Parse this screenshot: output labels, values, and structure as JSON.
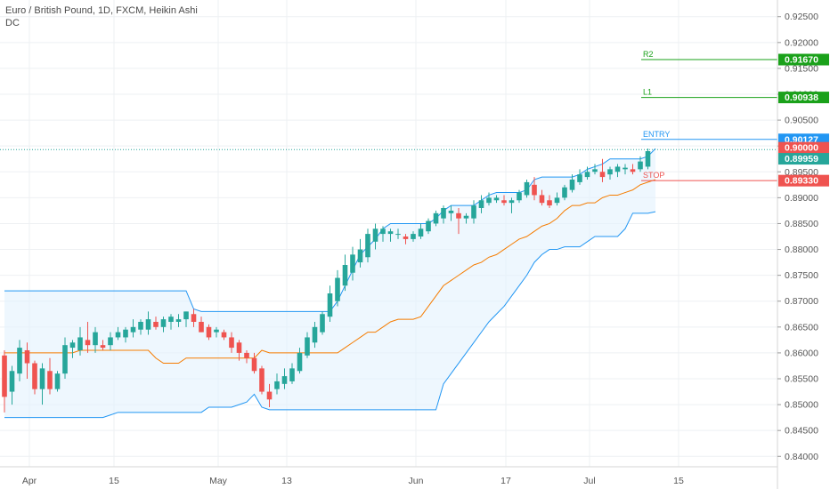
{
  "header": {
    "title": "Euro / British Pound, 1D, FXCM, Heikin Ashi",
    "indicator": "DC"
  },
  "colors": {
    "bull": "#26a69a",
    "bear": "#ef5350",
    "channel": "#2196f3",
    "channel_fill": "#e3f2fd",
    "mid": "#f57c00",
    "target": "#1aa11a",
    "entry": "#2196f3",
    "stop": "#ef5350",
    "last_price": "#26a69a",
    "grid": "#eef0f3",
    "axis_text": "#555555"
  },
  "chart_data": {
    "type": "candlestick",
    "y_ticks": [
      "0.92500",
      "0.92000",
      "0.91500",
      "0.91000",
      "0.90500",
      "0.90000",
      "0.89500",
      "0.89000",
      "0.88500",
      "0.88000",
      "0.87500",
      "0.87000",
      "0.86500",
      "0.86000",
      "0.85500",
      "0.85000",
      "0.84500",
      "0.84000"
    ],
    "x_ticks": [
      "Apr",
      "15",
      "May",
      "13",
      "Jun",
      "17",
      "Jul",
      "15"
    ],
    "ylim": [
      0.8385,
      0.9265
    ],
    "grid": true,
    "candles": [
      [
        0.8595,
        0.8605,
        0.8485,
        0.8515
      ],
      [
        0.8525,
        0.8575,
        0.85,
        0.8565
      ],
      [
        0.856,
        0.8625,
        0.8545,
        0.861
      ],
      [
        0.8605,
        0.862,
        0.855,
        0.858
      ],
      [
        0.858,
        0.8585,
        0.852,
        0.853
      ],
      [
        0.853,
        0.858,
        0.85,
        0.857
      ],
      [
        0.8565,
        0.859,
        0.852,
        0.853
      ],
      [
        0.853,
        0.8565,
        0.8525,
        0.856
      ],
      [
        0.856,
        0.863,
        0.855,
        0.8615
      ],
      [
        0.861,
        0.8625,
        0.859,
        0.862
      ],
      [
        0.8605,
        0.865,
        0.8595,
        0.863
      ],
      [
        0.8625,
        0.866,
        0.86,
        0.8615
      ],
      [
        0.8615,
        0.865,
        0.86,
        0.864
      ],
      [
        0.8615,
        0.8625,
        0.8605,
        0.861
      ],
      [
        0.8615,
        0.864,
        0.8605,
        0.863
      ],
      [
        0.863,
        0.865,
        0.8625,
        0.864
      ],
      [
        0.863,
        0.865,
        0.862,
        0.8645
      ],
      [
        0.864,
        0.8665,
        0.863,
        0.865
      ],
      [
        0.8645,
        0.8665,
        0.8635,
        0.866
      ],
      [
        0.8645,
        0.868,
        0.8635,
        0.8665
      ],
      [
        0.866,
        0.867,
        0.8645,
        0.865
      ],
      [
        0.865,
        0.867,
        0.864,
        0.8665
      ],
      [
        0.866,
        0.8675,
        0.8645,
        0.867
      ],
      [
        0.866,
        0.8675,
        0.865,
        0.8665
      ],
      [
        0.8665,
        0.868,
        0.865,
        0.868
      ],
      [
        0.8675,
        0.8685,
        0.865,
        0.866
      ],
      [
        0.866,
        0.867,
        0.864,
        0.864
      ],
      [
        0.865,
        0.8655,
        0.8625,
        0.863
      ],
      [
        0.864,
        0.865,
        0.863,
        0.8645
      ],
      [
        0.864,
        0.8645,
        0.8625,
        0.863
      ],
      [
        0.863,
        0.864,
        0.86,
        0.861
      ],
      [
        0.862,
        0.8625,
        0.8585,
        0.86
      ],
      [
        0.86,
        0.8605,
        0.858,
        0.859
      ],
      [
        0.859,
        0.86,
        0.856,
        0.8565
      ],
      [
        0.857,
        0.8575,
        0.852,
        0.8525
      ],
      [
        0.8525,
        0.854,
        0.8495,
        0.851
      ],
      [
        0.853,
        0.856,
        0.852,
        0.8545
      ],
      [
        0.854,
        0.857,
        0.853,
        0.8555
      ],
      [
        0.8545,
        0.858,
        0.854,
        0.857
      ],
      [
        0.8565,
        0.861,
        0.856,
        0.86
      ],
      [
        0.8595,
        0.864,
        0.859,
        0.863
      ],
      [
        0.862,
        0.866,
        0.861,
        0.865
      ],
      [
        0.864,
        0.868,
        0.8635,
        0.8675
      ],
      [
        0.867,
        0.873,
        0.866,
        0.8715
      ],
      [
        0.87,
        0.876,
        0.869,
        0.8745
      ],
      [
        0.873,
        0.879,
        0.872,
        0.877
      ],
      [
        0.8755,
        0.8805,
        0.874,
        0.879
      ],
      [
        0.8775,
        0.882,
        0.8765,
        0.88
      ],
      [
        0.8785,
        0.884,
        0.8775,
        0.883
      ],
      [
        0.8815,
        0.885,
        0.88,
        0.884
      ],
      [
        0.883,
        0.8845,
        0.8815,
        0.884
      ],
      [
        0.883,
        0.884,
        0.8815,
        0.8835
      ],
      [
        0.883,
        0.884,
        0.882,
        0.883
      ],
      [
        0.8825,
        0.883,
        0.881,
        0.882
      ],
      [
        0.882,
        0.8835,
        0.8815,
        0.883
      ],
      [
        0.8825,
        0.885,
        0.882,
        0.884
      ],
      [
        0.8835,
        0.886,
        0.883,
        0.8855
      ],
      [
        0.885,
        0.8875,
        0.8845,
        0.887
      ],
      [
        0.886,
        0.8885,
        0.885,
        0.888
      ],
      [
        0.887,
        0.8885,
        0.8855,
        0.8875
      ],
      [
        0.887,
        0.888,
        0.883,
        0.886
      ],
      [
        0.886,
        0.887,
        0.885,
        0.8865
      ],
      [
        0.886,
        0.8895,
        0.885,
        0.8885
      ],
      [
        0.888,
        0.8905,
        0.887,
        0.8895
      ],
      [
        0.889,
        0.891,
        0.8885,
        0.89
      ],
      [
        0.8895,
        0.8905,
        0.889,
        0.89
      ],
      [
        0.8895,
        0.8905,
        0.8885,
        0.889
      ],
      [
        0.889,
        0.89,
        0.887,
        0.8895
      ],
      [
        0.8895,
        0.8915,
        0.889,
        0.891
      ],
      [
        0.8905,
        0.8935,
        0.89,
        0.893
      ],
      [
        0.8925,
        0.894,
        0.8895,
        0.8905
      ],
      [
        0.8905,
        0.8915,
        0.8885,
        0.889
      ],
      [
        0.8895,
        0.8905,
        0.888,
        0.8885
      ],
      [
        0.889,
        0.891,
        0.8885,
        0.89
      ],
      [
        0.89,
        0.8925,
        0.8895,
        0.892
      ],
      [
        0.8915,
        0.8945,
        0.891,
        0.8935
      ],
      [
        0.893,
        0.8955,
        0.8925,
        0.8945
      ],
      [
        0.894,
        0.896,
        0.8935,
        0.895
      ],
      [
        0.895,
        0.8965,
        0.8945,
        0.8955
      ],
      [
        0.895,
        0.8975,
        0.893,
        0.894
      ],
      [
        0.8945,
        0.896,
        0.8935,
        0.8955
      ],
      [
        0.895,
        0.8965,
        0.894,
        0.896
      ],
      [
        0.8955,
        0.8965,
        0.8945,
        0.8958
      ],
      [
        0.8955,
        0.8965,
        0.8945,
        0.895
      ],
      [
        0.8955,
        0.898,
        0.895,
        0.897
      ],
      [
        0.896,
        0.8995,
        0.8955,
        0.899
      ]
    ],
    "donchian_upper": [
      0.872,
      0.872,
      0.872,
      0.872,
      0.872,
      0.872,
      0.872,
      0.872,
      0.872,
      0.872,
      0.872,
      0.872,
      0.872,
      0.872,
      0.872,
      0.872,
      0.872,
      0.872,
      0.872,
      0.872,
      0.872,
      0.872,
      0.872,
      0.872,
      0.872,
      0.8685,
      0.868,
      0.868,
      0.868,
      0.868,
      0.868,
      0.868,
      0.868,
      0.868,
      0.868,
      0.868,
      0.868,
      0.868,
      0.868,
      0.868,
      0.868,
      0.868,
      0.868,
      0.868,
      0.87,
      0.873,
      0.876,
      0.879,
      0.8805,
      0.882,
      0.884,
      0.885,
      0.885,
      0.885,
      0.885,
      0.885,
      0.885,
      0.886,
      0.8875,
      0.8885,
      0.8885,
      0.8885,
      0.8885,
      0.8895,
      0.8905,
      0.891,
      0.891,
      0.891,
      0.891,
      0.8915,
      0.8935,
      0.894,
      0.894,
      0.894,
      0.894,
      0.894,
      0.8945,
      0.8955,
      0.896,
      0.8965,
      0.8975,
      0.8975,
      0.8975,
      0.8975,
      0.8975,
      0.898,
      0.8995
    ],
    "donchian_mid": [
      0.86,
      0.86,
      0.86,
      0.86,
      0.86,
      0.86,
      0.86,
      0.86,
      0.86,
      0.86,
      0.8605,
      0.8605,
      0.8605,
      0.8605,
      0.8605,
      0.8605,
      0.8605,
      0.8605,
      0.8605,
      0.8605,
      0.859,
      0.858,
      0.858,
      0.858,
      0.859,
      0.859,
      0.859,
      0.859,
      0.859,
      0.859,
      0.859,
      0.859,
      0.859,
      0.859,
      0.8605,
      0.86,
      0.86,
      0.86,
      0.86,
      0.86,
      0.86,
      0.86,
      0.86,
      0.86,
      0.86,
      0.861,
      0.862,
      0.863,
      0.864,
      0.864,
      0.865,
      0.866,
      0.8665,
      0.8665,
      0.8665,
      0.867,
      0.869,
      0.871,
      0.873,
      0.874,
      0.875,
      0.876,
      0.877,
      0.8775,
      0.8785,
      0.879,
      0.88,
      0.881,
      0.882,
      0.8825,
      0.8835,
      0.8845,
      0.885,
      0.886,
      0.8875,
      0.8885,
      0.8885,
      0.889,
      0.889,
      0.89,
      0.8905,
      0.8905,
      0.891,
      0.8915,
      0.8925,
      0.893,
      0.8935
    ],
    "donchian_lower": [
      0.8475,
      0.8475,
      0.8475,
      0.8475,
      0.8475,
      0.8475,
      0.8475,
      0.8475,
      0.8475,
      0.8475,
      0.8475,
      0.8475,
      0.8475,
      0.8475,
      0.848,
      0.8485,
      0.8485,
      0.8485,
      0.8485,
      0.8485,
      0.8485,
      0.8485,
      0.8485,
      0.8485,
      0.8485,
      0.8485,
      0.8485,
      0.8495,
      0.8495,
      0.8495,
      0.8495,
      0.85,
      0.8505,
      0.852,
      0.8495,
      0.849,
      0.849,
      0.849,
      0.849,
      0.849,
      0.849,
      0.849,
      0.849,
      0.849,
      0.849,
      0.849,
      0.849,
      0.849,
      0.849,
      0.849,
      0.849,
      0.849,
      0.849,
      0.849,
      0.849,
      0.849,
      0.849,
      0.849,
      0.854,
      0.856,
      0.858,
      0.86,
      0.862,
      0.864,
      0.866,
      0.8675,
      0.869,
      0.871,
      0.873,
      0.875,
      0.8775,
      0.879,
      0.88,
      0.88,
      0.8805,
      0.8805,
      0.8805,
      0.8815,
      0.8825,
      0.8825,
      0.8825,
      0.8825,
      0.884,
      0.887,
      0.887,
      0.887,
      0.8873
    ],
    "levels": [
      {
        "label": "R2",
        "price": "0.91670",
        "value": 0.9167,
        "color": "#1aa11a"
      },
      {
        "label": "L1",
        "price": "0.90938",
        "value": 0.90938,
        "color": "#1aa11a"
      },
      {
        "label": "ENTRY",
        "price": "0.90127",
        "value": 0.90127,
        "color": "#2196f3"
      },
      {
        "label": "STOP",
        "price": "0.89330",
        "value": 0.8933,
        "color": "#ef5350"
      }
    ],
    "price_tags": [
      {
        "price": "0.90000",
        "value": 0.9,
        "color": "#ef5350"
      },
      {
        "price": "0.89959",
        "value": 0.89959,
        "color": "#26a69a"
      }
    ],
    "last_price_line": 0.89959
  }
}
